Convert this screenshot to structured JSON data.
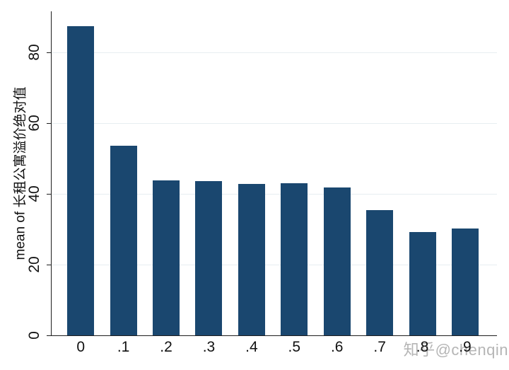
{
  "figure": {
    "background": "#ffffff",
    "watermark": "知乎@chenqin",
    "watermark_color": "#b5b5b5"
  },
  "chart_data": {
    "type": "bar",
    "title": "",
    "xlabel": "",
    "ylabel": "mean of 长租公寓溢价绝对值",
    "categories": [
      "0",
      ".1",
      ".2",
      ".3",
      ".4",
      ".5",
      ".6",
      ".7",
      ".8",
      ".9"
    ],
    "values": [
      87.3,
      53.5,
      43.7,
      43.6,
      42.8,
      43.0,
      41.7,
      35.4,
      29.1,
      30.2
    ],
    "yticks": [
      0,
      20,
      40,
      60,
      80
    ],
    "ylim": [
      0,
      91.5
    ],
    "grid": true,
    "legend": false,
    "bar_color": "#1a476f",
    "grid_color": "#e7eef1",
    "axis_color": "#1e1e1e",
    "tick_label_color": "#111111"
  }
}
